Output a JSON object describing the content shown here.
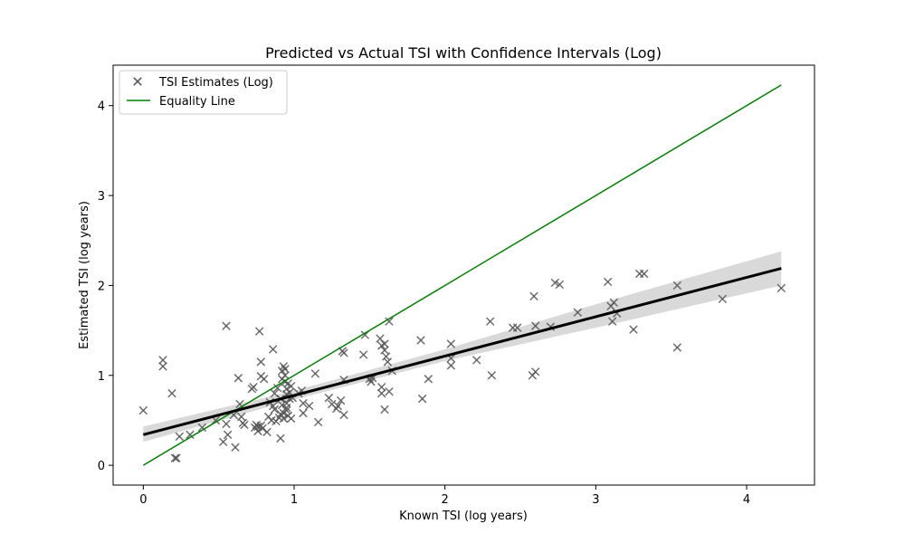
{
  "chart_data": {
    "type": "scatter",
    "title": "Predicted vs Actual TSI with Confidence Intervals (Log)",
    "xlabel": "Known TSI (log years)",
    "ylabel": "Estimated TSI (log years)",
    "xlim": [
      -0.2,
      4.45
    ],
    "ylim": [
      -0.22,
      4.45
    ],
    "xticks": [
      0,
      1,
      2,
      3,
      4
    ],
    "yticks": [
      0,
      1,
      2,
      3,
      4
    ],
    "grid": false,
    "legend_position": "upper-left",
    "legend": [
      {
        "label": "TSI Estimates (Log)",
        "marker": "x",
        "color": "#555555"
      },
      {
        "label": "Equality Line",
        "marker": "line",
        "color": "#008000"
      }
    ],
    "equality_line": {
      "name": "Equality Line",
      "x": [
        0,
        4.23
      ],
      "y": [
        0,
        4.23
      ],
      "color": "#008000"
    },
    "regression": {
      "color": "#000000",
      "band_color": "#d9d9d9",
      "x": [
        0,
        1,
        2,
        3,
        4.23
      ],
      "y": [
        0.34,
        0.78,
        1.22,
        1.66,
        2.19
      ],
      "lower": [
        0.26,
        0.73,
        1.16,
        1.53,
        2.0
      ],
      "upper": [
        0.43,
        0.83,
        1.29,
        1.79,
        2.38
      ]
    },
    "series": [
      {
        "name": "TSI Estimates (Log)",
        "color": "#555555",
        "points": [
          [
            0.0,
            0.61
          ],
          [
            0.13,
            1.17
          ],
          [
            0.13,
            1.1
          ],
          [
            0.19,
            0.8
          ],
          [
            0.21,
            0.08
          ],
          [
            0.22,
            0.08
          ],
          [
            0.24,
            0.32
          ],
          [
            0.31,
            0.34
          ],
          [
            0.39,
            0.42
          ],
          [
            0.48,
            0.5
          ],
          [
            0.53,
            0.26
          ],
          [
            0.55,
            1.55
          ],
          [
            0.55,
            0.46
          ],
          [
            0.56,
            0.34
          ],
          [
            0.6,
            0.56
          ],
          [
            0.61,
            0.2
          ],
          [
            0.63,
            0.97
          ],
          [
            0.64,
            0.68
          ],
          [
            0.65,
            0.54
          ],
          [
            0.66,
            0.47
          ],
          [
            0.67,
            0.45
          ],
          [
            0.72,
            0.85
          ],
          [
            0.73,
            0.87
          ],
          [
            0.74,
            0.42
          ],
          [
            0.75,
            0.45
          ],
          [
            0.76,
            0.43
          ],
          [
            0.76,
            0.38
          ],
          [
            0.77,
            1.49
          ],
          [
            0.78,
            1.15
          ],
          [
            0.78,
            0.99
          ],
          [
            0.78,
            0.44
          ],
          [
            0.79,
            0.41
          ],
          [
            0.8,
            0.96
          ],
          [
            0.82,
            0.37
          ],
          [
            0.83,
            0.54
          ],
          [
            0.84,
            0.7
          ],
          [
            0.85,
            0.5
          ],
          [
            0.86,
            1.29
          ],
          [
            0.86,
            0.66
          ],
          [
            0.87,
            0.8
          ],
          [
            0.87,
            0.62
          ],
          [
            0.88,
            0.49
          ],
          [
            0.89,
            0.86
          ],
          [
            0.9,
            0.53
          ],
          [
            0.91,
            0.3
          ],
          [
            0.91,
            0.74
          ],
          [
            0.91,
            0.57
          ],
          [
            0.92,
            1.05
          ],
          [
            0.92,
            0.96
          ],
          [
            0.92,
            0.67
          ],
          [
            0.93,
            1.1
          ],
          [
            0.93,
            0.58
          ],
          [
            0.93,
            0.52
          ],
          [
            0.94,
            1.07
          ],
          [
            0.94,
            1.0
          ],
          [
            0.94,
            0.93
          ],
          [
            0.95,
            0.85
          ],
          [
            0.95,
            0.79
          ],
          [
            0.95,
            0.69
          ],
          [
            0.95,
            0.64
          ],
          [
            0.95,
            0.61
          ],
          [
            0.96,
            0.55
          ],
          [
            0.96,
            0.91
          ],
          [
            0.97,
            0.81
          ],
          [
            0.97,
            0.74
          ],
          [
            0.98,
            0.88
          ],
          [
            0.98,
            0.52
          ],
          [
            0.99,
            0.75
          ],
          [
            1.03,
            0.8
          ],
          [
            1.05,
            0.83
          ],
          [
            1.06,
            0.69
          ],
          [
            1.06,
            0.58
          ],
          [
            1.1,
            0.66
          ],
          [
            1.14,
            1.02
          ],
          [
            1.16,
            0.48
          ],
          [
            1.23,
            0.75
          ],
          [
            1.25,
            0.68
          ],
          [
            1.28,
            0.63
          ],
          [
            1.29,
            0.66
          ],
          [
            1.31,
            0.72
          ],
          [
            1.32,
            1.27
          ],
          [
            1.33,
            1.25
          ],
          [
            1.33,
            0.95
          ],
          [
            1.33,
            0.56
          ],
          [
            1.46,
            1.23
          ],
          [
            1.47,
            1.45
          ],
          [
            1.5,
            0.96
          ],
          [
            1.51,
            0.93
          ],
          [
            1.52,
            0.97
          ],
          [
            1.57,
            1.41
          ],
          [
            1.58,
            1.33
          ],
          [
            1.58,
            0.87
          ],
          [
            1.58,
            0.8
          ],
          [
            1.6,
            1.35
          ],
          [
            1.6,
            1.28
          ],
          [
            1.6,
            0.62
          ],
          [
            1.61,
            1.21
          ],
          [
            1.62,
            1.15
          ],
          [
            1.63,
            1.6
          ],
          [
            1.63,
            0.82
          ],
          [
            1.65,
            1.05
          ],
          [
            1.84,
            1.39
          ],
          [
            1.85,
            0.74
          ],
          [
            1.89,
            0.96
          ],
          [
            2.04,
            1.35
          ],
          [
            2.04,
            1.19
          ],
          [
            2.04,
            1.11
          ],
          [
            2.21,
            1.17
          ],
          [
            2.3,
            1.6
          ],
          [
            2.31,
            1.0
          ],
          [
            2.45,
            1.53
          ],
          [
            2.48,
            1.53
          ],
          [
            2.58,
            1.0
          ],
          [
            2.59,
            1.88
          ],
          [
            2.6,
            1.04
          ],
          [
            2.6,
            1.55
          ],
          [
            2.7,
            1.54
          ],
          [
            2.73,
            2.03
          ],
          [
            2.76,
            2.01
          ],
          [
            2.88,
            1.7
          ],
          [
            3.08,
            2.04
          ],
          [
            3.1,
            1.77
          ],
          [
            3.11,
            1.6
          ],
          [
            3.12,
            1.81
          ],
          [
            3.14,
            1.69
          ],
          [
            3.25,
            1.51
          ],
          [
            3.29,
            2.13
          ],
          [
            3.32,
            2.13
          ],
          [
            3.54,
            2.0
          ],
          [
            3.54,
            1.31
          ],
          [
            3.84,
            1.85
          ],
          [
            4.23,
            1.97
          ]
        ]
      }
    ]
  }
}
